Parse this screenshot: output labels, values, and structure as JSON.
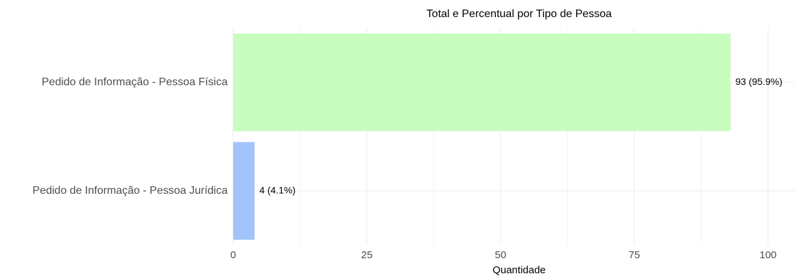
{
  "chart_data": {
    "type": "barh",
    "title": "Total e Percentual por Tipo de Pessoa",
    "xlabel": "Quantidade",
    "categories": [
      "Pedido de Informação - Pessoa Física",
      "Pedido de Informação - Pessoa Jurídica"
    ],
    "values": [
      93,
      4
    ],
    "value_labels": [
      "93 (95.9%)",
      "4 (4.1%)"
    ],
    "colors": [
      "#c9fdc0",
      "#a3c3fb"
    ],
    "xlim": [
      0,
      105
    ],
    "xticks": [
      0,
      25,
      50,
      75,
      100
    ],
    "minor_grid": [
      12.5,
      37.5,
      62.5,
      87.5
    ],
    "grid": true
  }
}
